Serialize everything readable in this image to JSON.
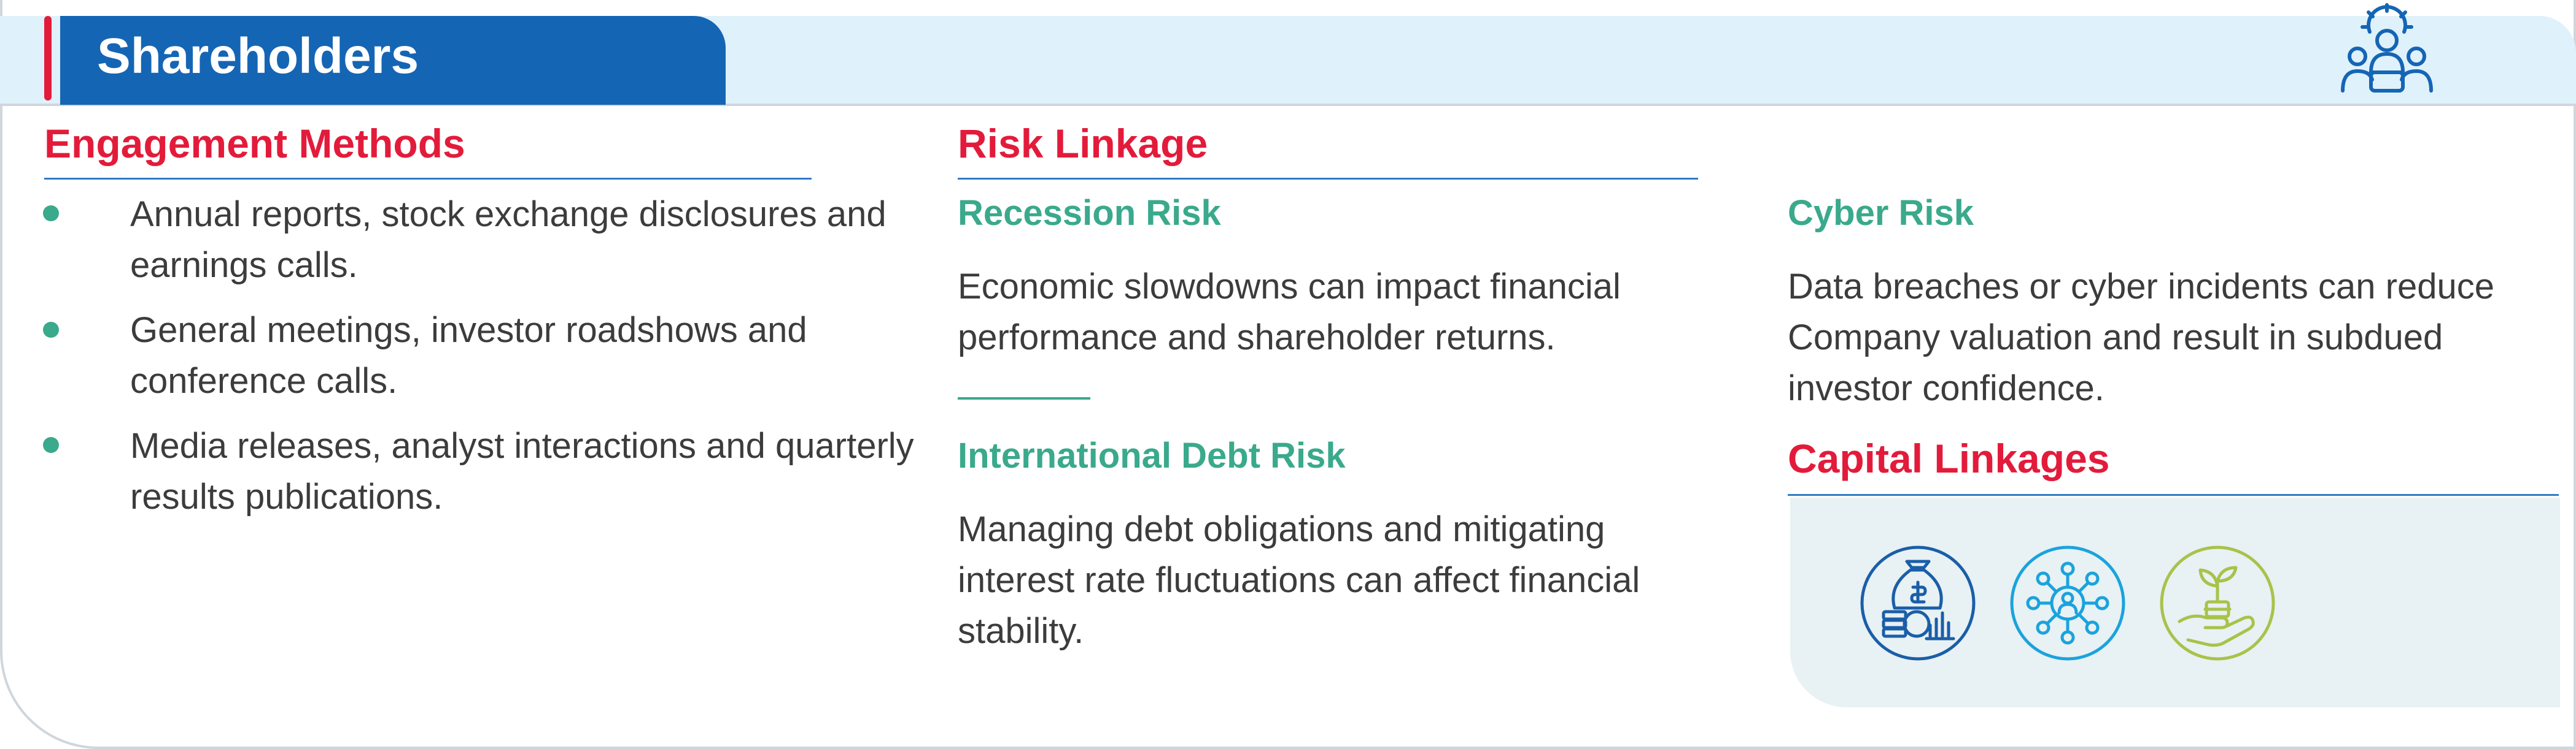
{
  "header": {
    "title": "Shareholders",
    "icon": "shareholder-group-gear-icon"
  },
  "engagement": {
    "title": "Engagement Methods",
    "items": [
      "Annual reports, stock exchange disclosures and earnings calls.",
      "General meetings, investor roadshows and conference calls.",
      "Media releases, analyst interactions and quarterly results publications."
    ]
  },
  "risk": {
    "title": "Risk Linkage",
    "recession": {
      "title": "Recession Risk",
      "text": "Economic slowdowns can impact financial performance and shareholder returns."
    },
    "international_debt": {
      "title": "International Debt Risk",
      "text": "Managing debt obligations and mitigating interest rate fluctuations can affect financial stability."
    },
    "cyber": {
      "title": "Cyber Risk",
      "text": "Data breaches or cyber incidents can reduce Company valuation and result in subdued investor confidence."
    }
  },
  "capital": {
    "title": "Capital Linkages",
    "icons": [
      "financial-capital-icon",
      "social-relationship-capital-icon",
      "natural-capital-icon"
    ]
  },
  "colors": {
    "brand_blue": "#1565b5",
    "accent_red": "#e31b3b",
    "teal": "#3aa98c",
    "light_blue_band": "#dff1fa",
    "capital_blue": "#1a5ea8",
    "capital_cyan": "#1aa3dd",
    "capital_green": "#a9c24a"
  }
}
